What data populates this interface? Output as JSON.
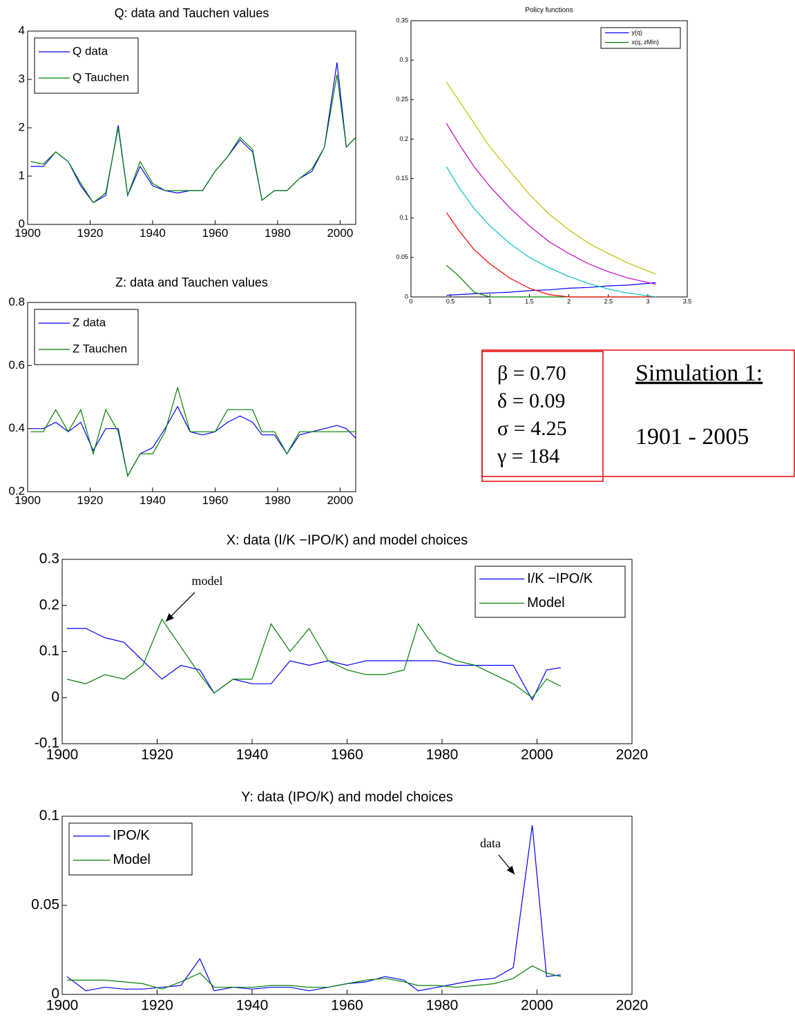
{
  "chart_data": [
    {
      "type": "line",
      "title": "Q: data and Tauchen values",
      "x": [
        1901,
        1905,
        1909,
        1913,
        1917,
        1921,
        1925,
        1929,
        1932,
        1936,
        1940,
        1944,
        1948,
        1952,
        1956,
        1960,
        1964,
        1968,
        1972,
        1975,
        1979,
        1983,
        1987,
        1991,
        1995,
        1999,
        2002,
        2005
      ],
      "series": [
        {
          "name": "Q data",
          "color": "#0000ff",
          "values": [
            1.2,
            1.2,
            1.5,
            1.3,
            0.8,
            0.45,
            0.6,
            2.05,
            0.6,
            1.2,
            0.8,
            0.7,
            0.65,
            0.7,
            0.7,
            1.1,
            1.4,
            1.75,
            1.5,
            0.5,
            0.7,
            0.7,
            0.95,
            1.1,
            1.6,
            3.35,
            1.6,
            1.8
          ]
        },
        {
          "name": "Q Tauchen",
          "color": "#008000",
          "values": [
            1.3,
            1.25,
            1.5,
            1.3,
            0.85,
            0.45,
            0.65,
            2.0,
            0.6,
            1.3,
            0.85,
            0.7,
            0.7,
            0.7,
            0.7,
            1.1,
            1.4,
            1.8,
            1.55,
            0.5,
            0.7,
            0.7,
            0.95,
            1.15,
            1.6,
            3.1,
            1.6,
            1.8
          ]
        }
      ],
      "xlim": [
        1900,
        2005
      ],
      "xticks": [
        1900,
        1920,
        1940,
        1960,
        1980,
        2000
      ],
      "ylim": [
        0,
        4
      ],
      "yticks": [
        0,
        1,
        2,
        3,
        4
      ],
      "legend": "upper left"
    },
    {
      "type": "line",
      "title": "Policy functions",
      "x": [
        0.45,
        0.6,
        0.8,
        1.0,
        1.25,
        1.5,
        1.75,
        2.0,
        2.25,
        2.5,
        2.75,
        3.1
      ],
      "series": [
        {
          "name": "y(q)",
          "color": "#0000ff",
          "values": [
            0.002,
            0.003,
            0.004,
            0.005,
            0.006,
            0.008,
            0.009,
            0.011,
            0.012,
            0.014,
            0.015,
            0.018
          ]
        },
        {
          "name": "x(q, zMin)",
          "color": "#008000",
          "values": [
            0.04,
            0.027,
            0.006,
            0,
            0,
            0,
            0,
            0,
            0,
            0,
            0,
            0
          ]
        },
        {
          "color": "#ff0000",
          "values": [
            0.107,
            0.085,
            0.06,
            0.042,
            0.024,
            0.011,
            0.003,
            0,
            0,
            0,
            0,
            0
          ]
        },
        {
          "color": "#00bfbf",
          "values": [
            0.165,
            0.14,
            0.112,
            0.09,
            0.068,
            0.05,
            0.037,
            0.026,
            0.017,
            0.01,
            0.005,
            0
          ]
        },
        {
          "color": "#bf00bf",
          "values": [
            0.22,
            0.195,
            0.165,
            0.14,
            0.113,
            0.09,
            0.07,
            0.055,
            0.042,
            0.032,
            0.024,
            0.016
          ]
        },
        {
          "color": "#bfbf00",
          "values": [
            0.272,
            0.25,
            0.22,
            0.19,
            0.16,
            0.13,
            0.105,
            0.085,
            0.068,
            0.055,
            0.043,
            0.029
          ]
        }
      ],
      "xlim": [
        0,
        3.5
      ],
      "xticks": [
        0,
        0.5,
        1,
        1.5,
        2,
        2.5,
        3,
        3.5
      ],
      "ylim": [
        0,
        0.35
      ],
      "yticks": [
        0,
        0.05,
        0.1,
        0.15,
        0.2,
        0.25,
        0.3,
        0.35
      ],
      "legend": "upper right"
    },
    {
      "type": "line",
      "title": "Z: data and Tauchen values",
      "x": [
        1901,
        1905,
        1909,
        1913,
        1917,
        1921,
        1925,
        1929,
        1932,
        1936,
        1940,
        1944,
        1948,
        1952,
        1956,
        1960,
        1964,
        1968,
        1972,
        1975,
        1979,
        1983,
        1987,
        1991,
        1995,
        1999,
        2002,
        2005
      ],
      "series": [
        {
          "name": "Z data",
          "color": "#0000ff",
          "values": [
            0.4,
            0.4,
            0.42,
            0.39,
            0.42,
            0.33,
            0.4,
            0.4,
            0.25,
            0.32,
            0.34,
            0.4,
            0.47,
            0.39,
            0.38,
            0.39,
            0.42,
            0.44,
            0.42,
            0.38,
            0.38,
            0.32,
            0.38,
            0.39,
            0.4,
            0.41,
            0.4,
            0.37
          ]
        },
        {
          "name": "Z Tauchen",
          "color": "#008000",
          "values": [
            0.39,
            0.39,
            0.46,
            0.39,
            0.46,
            0.32,
            0.46,
            0.39,
            0.25,
            0.32,
            0.32,
            0.39,
            0.53,
            0.39,
            0.39,
            0.39,
            0.46,
            0.46,
            0.46,
            0.39,
            0.39,
            0.32,
            0.39,
            0.39,
            0.39,
            0.39,
            0.39,
            0.39
          ]
        }
      ],
      "xlim": [
        1900,
        2005
      ],
      "xticks": [
        1900,
        1920,
        1940,
        1960,
        1980,
        2000
      ],
      "ylim": [
        0.2,
        0.8
      ],
      "yticks": [
        0.2,
        0.4,
        0.6,
        0.8
      ],
      "legend": "upper left"
    },
    {
      "type": "line",
      "title": "X: data (I/K −IPO/K) and model choices",
      "annotation": "model",
      "x": [
        1901,
        1905,
        1909,
        1913,
        1917,
        1921,
        1925,
        1929,
        1932,
        1936,
        1940,
        1944,
        1948,
        1952,
        1956,
        1960,
        1964,
        1968,
        1972,
        1975,
        1979,
        1983,
        1987,
        1991,
        1995,
        1999,
        2002,
        2005
      ],
      "series": [
        {
          "name": "I/K −IPO/K",
          "color": "#0000ff",
          "values": [
            0.15,
            0.15,
            0.13,
            0.12,
            0.08,
            0.04,
            0.07,
            0.06,
            0.01,
            0.04,
            0.03,
            0.03,
            0.08,
            0.07,
            0.08,
            0.07,
            0.08,
            0.08,
            0.08,
            0.08,
            0.08,
            0.07,
            0.07,
            0.07,
            0.07,
            -0.005,
            0.06,
            0.065
          ]
        },
        {
          "name": "Model",
          "color": "#008000",
          "values": [
            0.04,
            0.03,
            0.05,
            0.04,
            0.07,
            0.17,
            0.11,
            0.05,
            0.01,
            0.04,
            0.04,
            0.16,
            0.1,
            0.15,
            0.08,
            0.06,
            0.05,
            0.05,
            0.06,
            0.16,
            0.1,
            0.08,
            0.07,
            0.05,
            0.03,
            0,
            0.04,
            0.025
          ]
        }
      ],
      "xlim": [
        1900,
        2020
      ],
      "xticks": [
        1900,
        1920,
        1940,
        1960,
        1980,
        2000,
        2020
      ],
      "ylim": [
        -0.1,
        0.3
      ],
      "yticks": [
        -0.1,
        0,
        0.1,
        0.2,
        0.3
      ],
      "legend": "upper right"
    },
    {
      "type": "line",
      "title": "Y: data (IPO/K) and model choices",
      "annotation": "data",
      "x": [
        1901,
        1905,
        1909,
        1913,
        1917,
        1921,
        1925,
        1929,
        1932,
        1936,
        1940,
        1944,
        1948,
        1952,
        1956,
        1960,
        1964,
        1968,
        1972,
        1975,
        1979,
        1983,
        1987,
        1991,
        1995,
        1999,
        2002,
        2005
      ],
      "series": [
        {
          "name": "IPO/K",
          "color": "#0000ff",
          "values": [
            0.01,
            0.002,
            0.004,
            0.003,
            0.003,
            0.004,
            0.005,
            0.02,
            0.002,
            0.004,
            0.003,
            0.004,
            0.004,
            0.002,
            0.004,
            0.006,
            0.007,
            0.01,
            0.008,
            0.002,
            0.004,
            0.006,
            0.008,
            0.009,
            0.015,
            0.095,
            0.01,
            0.011
          ]
        },
        {
          "name": "Model",
          "color": "#008000",
          "values": [
            0.008,
            0.008,
            0.008,
            0.007,
            0.006,
            0.003,
            0.007,
            0.012,
            0.004,
            0.004,
            0.004,
            0.005,
            0.005,
            0.004,
            0.004,
            0.006,
            0.008,
            0.009,
            0.007,
            0.005,
            0.005,
            0.004,
            0.005,
            0.006,
            0.009,
            0.016,
            0.012,
            0.01
          ]
        }
      ],
      "xlim": [
        1900,
        2020
      ],
      "xticks": [
        1900,
        1920,
        1940,
        1960,
        1980,
        2000,
        2020
      ],
      "ylim": [
        0,
        0.1
      ],
      "yticks": [
        0,
        0.05,
        0.1
      ],
      "legend": "upper left"
    }
  ],
  "parameters": [
    "β  =  0.70",
    "δ  =  0.09",
    "σ  =  4.25",
    "γ  =  184"
  ],
  "simulation": {
    "title": "Simulation 1:",
    "period": "1901 - 2005"
  }
}
